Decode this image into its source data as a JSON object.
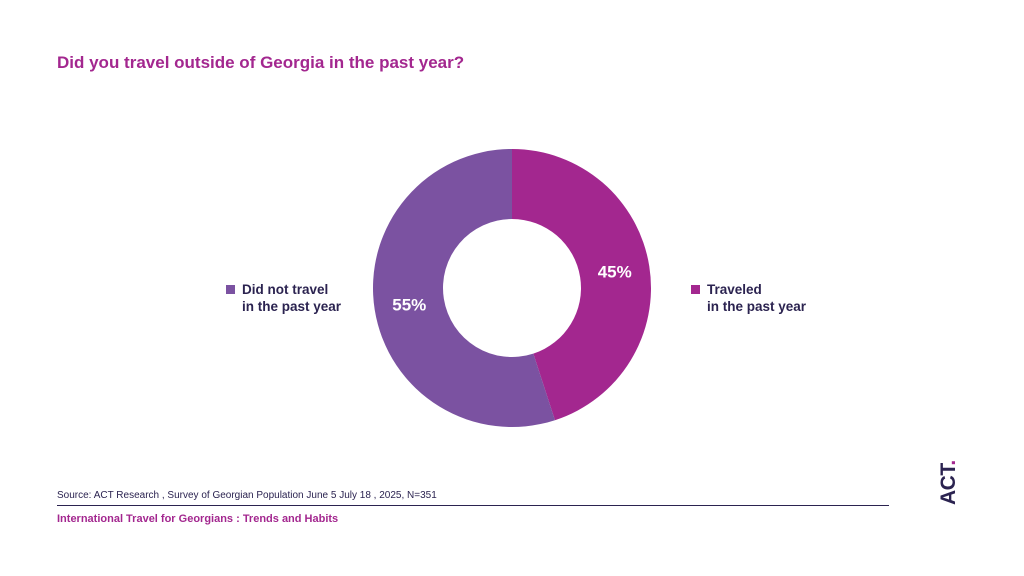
{
  "title": "Did you travel outside of Georgia in the past year?",
  "source": "Source: ACT Research , Survey of Georgian Population June 5 July 18 , 2025, N=351",
  "footer": "International Travel for Georgians : Trends and Habits",
  "logo": {
    "text": "ACT",
    "accent_color": "#a3278f"
  },
  "colors": {
    "title": "#a3278f",
    "text": "#2b2350",
    "traveled": "#a3278f",
    "not_traveled": "#7b52a1"
  },
  "legend": {
    "not_traveled": {
      "line1": "Did not travel",
      "line2": "in the past year"
    },
    "traveled": {
      "line1": "Traveled",
      "line2": "in the past year"
    }
  },
  "chart_data": {
    "type": "pie",
    "donut": true,
    "title": "Did you travel outside of Georgia in the past year?",
    "slices": [
      {
        "label": "Traveled in the past year",
        "value": 45,
        "display": "45%",
        "color": "#a3278f"
      },
      {
        "label": "Did not travel in the past year",
        "value": 55,
        "display": "55%",
        "color": "#7b52a1"
      }
    ]
  }
}
